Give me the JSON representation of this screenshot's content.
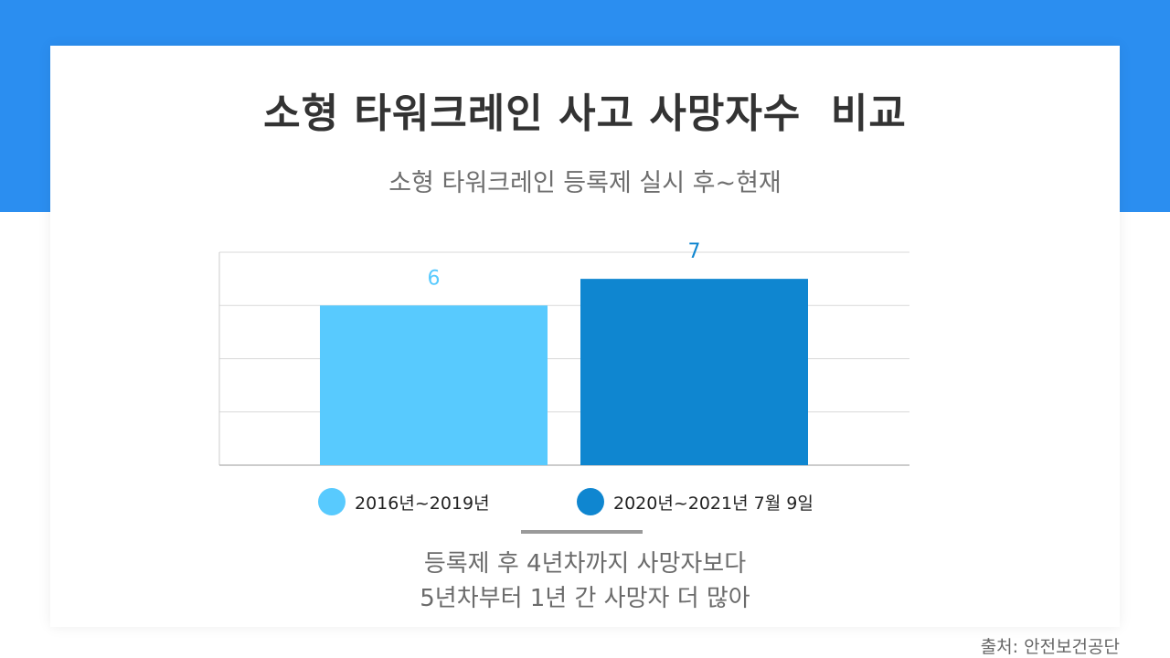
{
  "header": {
    "title": "소형 타워크레인 사고 사망자수  비교",
    "subtitle": "소형 타워크레인 등록제 실시 후~현재"
  },
  "chart_data": {
    "type": "bar",
    "categories": [
      "2016년~2019년",
      "2020년~2021년 7월 9일"
    ],
    "values": [
      6,
      7
    ],
    "colors": [
      "#58cafe",
      "#0f86d0"
    ],
    "value_label_colors": [
      "#58cafe",
      "#0f86d0"
    ],
    "ylim": [
      0,
      8
    ],
    "grid": true,
    "legend_position": "bottom",
    "show_value_labels": true
  },
  "caption": {
    "line1": "등록제 후 4년차까지 사망자보다",
    "line2": "5년차부터 1년 간 사망자 더 많아"
  },
  "source": "출처: 안전보건공단",
  "colors": {
    "band": "#2b8ef0",
    "title": "#333333",
    "subtitle": "#6e6e6e"
  }
}
